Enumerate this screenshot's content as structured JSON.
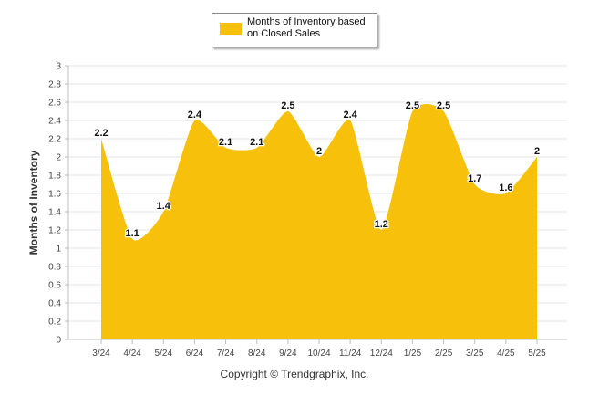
{
  "chart_data": {
    "type": "area",
    "categories": [
      "3/24",
      "4/24",
      "5/24",
      "6/24",
      "7/24",
      "8/24",
      "9/24",
      "10/24",
      "11/24",
      "12/24",
      "1/25",
      "2/25",
      "3/25",
      "4/25",
      "5/25"
    ],
    "series": [
      {
        "name": "Months of Inventory based on Closed Sales",
        "values": [
          2.2,
          1.1,
          1.4,
          2.4,
          2.1,
          2.1,
          2.5,
          2.0,
          2.4,
          1.2,
          2.5,
          2.5,
          1.7,
          1.6,
          2.0
        ],
        "labels": [
          "2.2",
          "1.1",
          "1.4",
          "2.4",
          "2.1",
          "2.1",
          "2.5",
          "2",
          "2.4",
          "1.2",
          "2.5",
          "2.5",
          "1.7",
          "1.6",
          "2"
        ]
      }
    ],
    "yticks": [
      "0",
      "0.2",
      "0.4",
      "0.6",
      "0.8",
      "1",
      "1.2",
      "1.4",
      "1.6",
      "1.8",
      "2",
      "2.2",
      "2.4",
      "2.6",
      "2.8",
      "3"
    ],
    "ylim": [
      0,
      3
    ],
    "ylabel": "Months of Inventory",
    "legend_position": "top-center",
    "grid": true,
    "colors": {
      "fill": "#f7c00a",
      "grid": "#e6e6e6",
      "axis": "#c0c0c0"
    }
  },
  "footer": {
    "copyright": "Copyright © Trendgraphix, Inc."
  }
}
